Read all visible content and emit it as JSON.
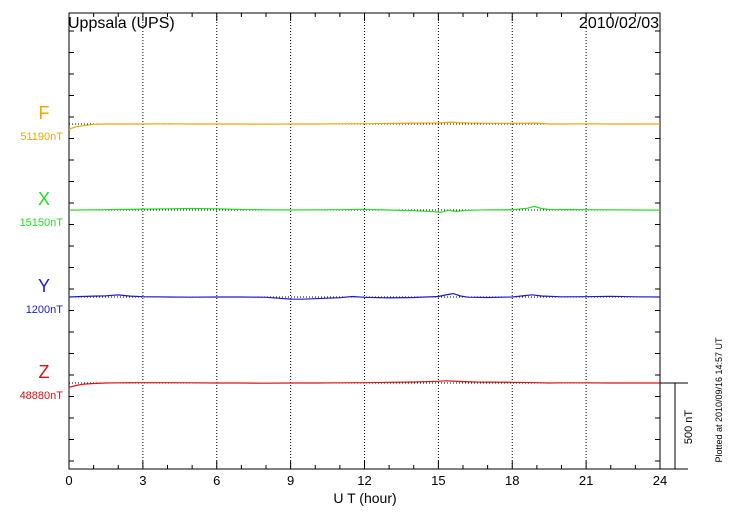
{
  "chart_data": {
    "type": "line",
    "title": "Uppsala (UPS)",
    "date": "2010/02/03",
    "xlabel": "U T (hour)",
    "xlim": [
      0,
      24
    ],
    "xticks": [
      "0",
      "3",
      "6",
      "9",
      "12",
      "15",
      "18",
      "21",
      "24"
    ],
    "grid": "vertical dotted every 3 hours",
    "scale_bar_label": "500 nT",
    "scale_bar_nT": 500,
    "plotted_note": "Plotted at 2010/09/16 14:57 UT",
    "series": [
      {
        "name": "F",
        "baseline_label": "51190nT",
        "baseline_nT": 51190,
        "color": "#f0a800",
        "x": [
          0,
          0.3,
          0.6,
          1.0,
          1.5,
          2,
          3,
          4,
          5,
          6,
          7,
          8,
          9,
          10,
          11,
          12,
          13,
          14,
          15,
          15.5,
          15.8,
          16.2,
          17,
          18,
          19,
          19.5,
          20,
          21,
          22,
          23,
          24
        ],
        "values": [
          51160,
          51175,
          51180,
          51188,
          51190,
          51190,
          51190,
          51191,
          51190,
          51190,
          51190,
          51189,
          51190,
          51190,
          51191,
          51192,
          51193,
          51195,
          51196,
          51201,
          51198,
          51196,
          51194,
          51194,
          51195,
          51190,
          51190,
          51191,
          51190,
          51190,
          51190
        ]
      },
      {
        "name": "X",
        "baseline_label": "15150nT",
        "baseline_nT": 15150,
        "color": "#22dd22",
        "x": [
          0,
          0.5,
          1,
          2,
          3,
          4,
          5,
          6,
          7,
          8,
          9,
          10,
          11,
          12,
          13,
          14,
          14.8,
          15.1,
          15.4,
          15.7,
          16.2,
          17,
          18,
          18.6,
          18.9,
          19.2,
          19.6,
          20,
          21,
          22,
          23,
          24
        ],
        "values": [
          15149,
          15150,
          15151,
          15153,
          15155,
          15157,
          15159,
          15157,
          15153,
          15151,
          15150,
          15151,
          15152,
          15154,
          15150,
          15146,
          15140,
          15136,
          15149,
          15142,
          15148,
          15151,
          15152,
          15160,
          15171,
          15158,
          15152,
          15153,
          15152,
          15151,
          15150,
          15149
        ]
      },
      {
        "name": "Y",
        "baseline_label": "1200nT",
        "baseline_nT": 1200,
        "color": "#1a1ad6",
        "x": [
          0,
          0.5,
          1,
          1.5,
          2,
          2.5,
          3,
          4,
          5,
          6,
          7,
          8,
          8.5,
          9,
          9.5,
          10,
          11,
          11.5,
          12,
          13,
          14,
          15,
          15.3,
          15.6,
          15.9,
          16.2,
          17,
          18,
          18.5,
          18.8,
          19.2,
          20,
          21,
          22,
          23,
          24
        ],
        "values": [
          1200,
          1203,
          1205,
          1207,
          1212,
          1205,
          1202,
          1200,
          1199,
          1200,
          1200,
          1198,
          1193,
          1188,
          1187,
          1190,
          1196,
          1203,
          1198,
          1195,
          1197,
          1203,
          1212,
          1220,
          1206,
          1199,
          1197,
          1200,
          1208,
          1213,
          1206,
          1201,
          1202,
          1204,
          1201,
          1200
        ]
      },
      {
        "name": "Z",
        "baseline_label": "48880nT",
        "baseline_nT": 48880,
        "color": "#dd1111",
        "x": [
          0,
          0.3,
          0.6,
          1,
          1.5,
          2,
          3,
          4,
          5,
          6,
          7,
          8,
          9,
          10,
          11,
          12,
          13,
          14,
          15,
          15.3,
          15.6,
          16,
          16.5,
          17,
          18,
          19,
          19.5,
          20,
          21,
          22,
          23,
          24
        ],
        "values": [
          48855,
          48866,
          48873,
          48877,
          48880,
          48881,
          48882,
          48882,
          48881,
          48880,
          48880,
          48879,
          48880,
          48880,
          48881,
          48882,
          48884,
          48886,
          48890,
          48893,
          48891,
          48888,
          48886,
          48885,
          48884,
          48882,
          48880,
          48881,
          48881,
          48880,
          48880,
          48880
        ]
      }
    ]
  }
}
